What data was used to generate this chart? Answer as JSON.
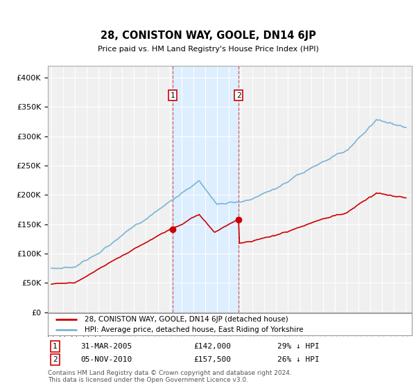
{
  "title": "28, CONISTON WAY, GOOLE, DN14 6JP",
  "subtitle": "Price paid vs. HM Land Registry's House Price Index (HPI)",
  "footer": "Contains HM Land Registry data © Crown copyright and database right 2024.\nThis data is licensed under the Open Government Licence v3.0.",
  "legend_entries": [
    "28, CONISTON WAY, GOOLE, DN14 6JP (detached house)",
    "HPI: Average price, detached house, East Riding of Yorkshire"
  ],
  "sale1_date": "31-MAR-2005",
  "sale1_price": "£142,000",
  "sale1_note": "29% ↓ HPI",
  "sale2_date": "05-NOV-2010",
  "sale2_price": "£157,500",
  "sale2_note": "26% ↓ HPI",
  "red_color": "#cc0000",
  "blue_color": "#7ab3d4",
  "shading_color": "#ddeeff",
  "grid_color": "#cccccc",
  "plot_bg": "#f0f0f0",
  "background_color": "#ffffff",
  "sale1_x": 2005.25,
  "sale2_x": 2010.84,
  "sale1_y": 142000,
  "sale2_y": 157500,
  "ylim": [
    0,
    420000
  ],
  "yticks": [
    0,
    50000,
    100000,
    150000,
    200000,
    250000,
    300000,
    350000,
    400000
  ],
  "ytick_labels": [
    "£0",
    "£50K",
    "£100K",
    "£150K",
    "£200K",
    "£250K",
    "£300K",
    "£350K",
    "£400K"
  ],
  "xlim_left": 1994.7,
  "xlim_right": 2025.5
}
